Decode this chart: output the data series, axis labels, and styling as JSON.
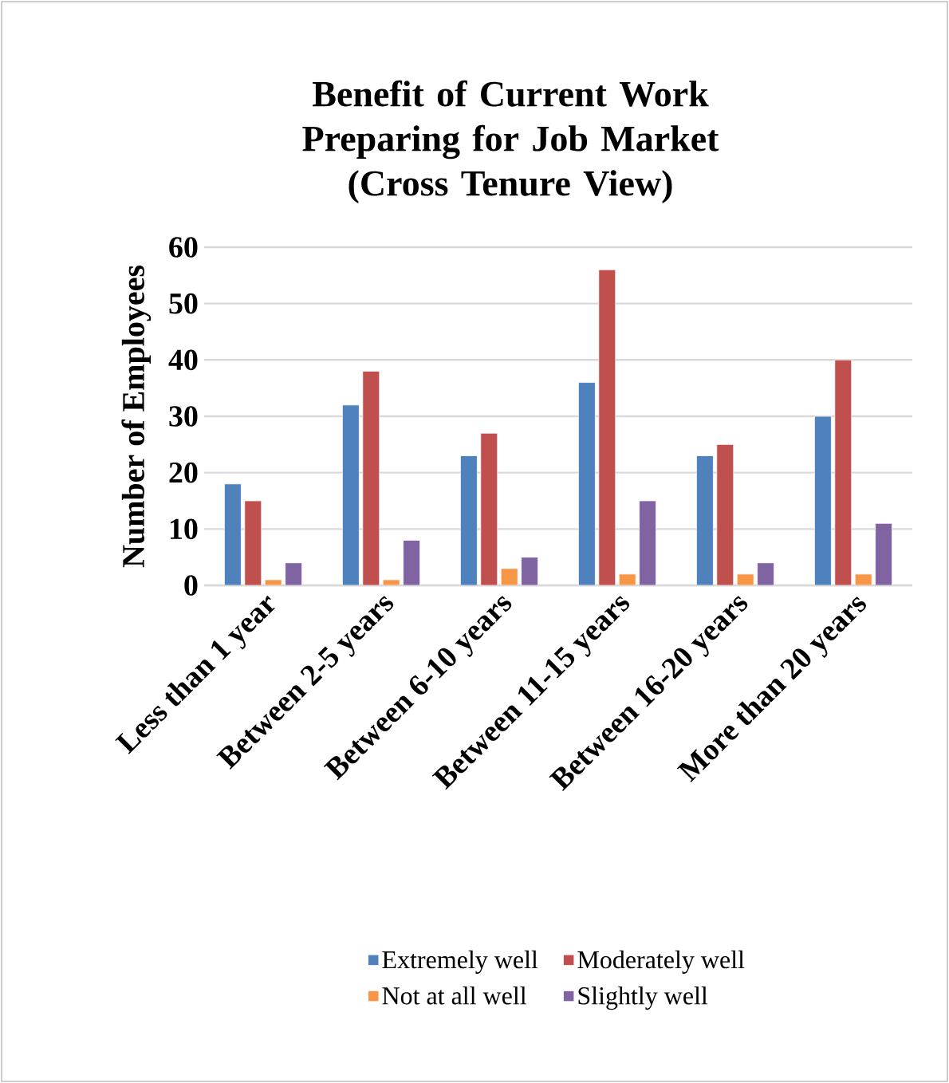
{
  "chart_data": {
    "type": "bar",
    "title": "Benefit of Current Work Preparing for Job Market",
    "subtitle": "(Cross Tenure View)",
    "ylabel": "Number of Employees",
    "categories": [
      "Less than 1 year",
      "Between 2-5 years",
      "Between 6-10 years",
      "Between 11-15 years",
      "Between 16-20 years",
      "More than 20 years"
    ],
    "series": [
      {
        "name": "Extremely well",
        "color": "#4f81bd",
        "values": [
          18,
          32,
          23,
          36,
          23,
          30
        ]
      },
      {
        "name": "Moderately well",
        "color": "#c0504d",
        "values": [
          15,
          38,
          27,
          56,
          25,
          40
        ]
      },
      {
        "name": "Not at all well",
        "color": "#f79646",
        "values": [
          1,
          1,
          3,
          2,
          2,
          2
        ]
      },
      {
        "name": "Slightly well",
        "color": "#8064a2",
        "values": [
          4,
          8,
          5,
          15,
          4,
          11
        ]
      }
    ],
    "ylim": [
      0,
      60
    ],
    "yticks": [
      0,
      10,
      20,
      30,
      40,
      50,
      60
    ],
    "grid": "y",
    "legend": "bottom"
  }
}
